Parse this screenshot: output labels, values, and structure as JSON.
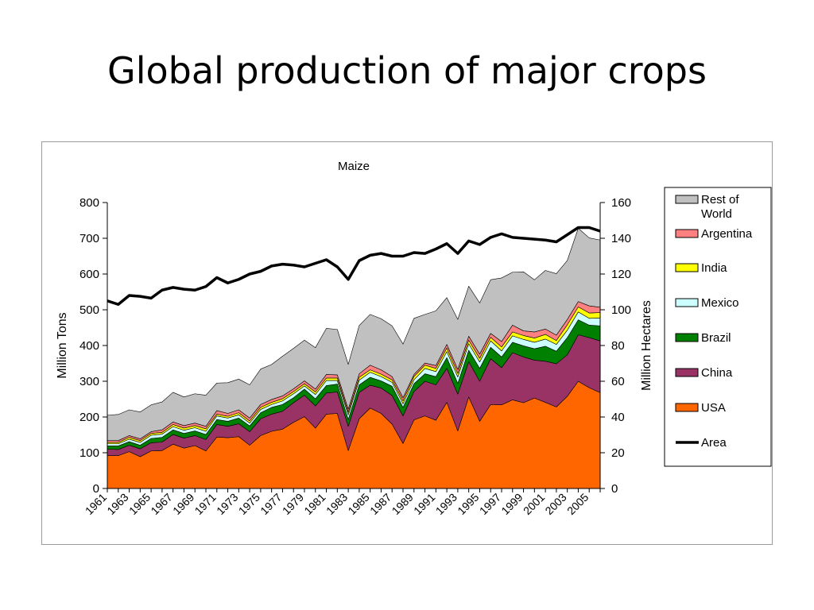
{
  "slide": {
    "title": "Global production of major crops"
  },
  "colors": {
    "USA": "#ff6600",
    "China": "#993366",
    "Brazil": "#008000",
    "Mexico": "#ccffff",
    "India": "#ffff00",
    "Argentina": "#ff8080",
    "Rest of World": "#c0c0c0",
    "Area": "#000000"
  },
  "chart_data": {
    "type": "area",
    "title": "Maize",
    "xlabel": "",
    "ylabel": "Million Tons",
    "y2label": "Million Hectares",
    "ylim": [
      0,
      800
    ],
    "y2lim": [
      0,
      160
    ],
    "yticks": [
      0,
      100,
      200,
      300,
      400,
      500,
      600,
      700,
      800
    ],
    "y2ticks": [
      0,
      20,
      40,
      60,
      80,
      100,
      120,
      140,
      160
    ],
    "grid": false,
    "legend_position": "right",
    "x": [
      1961,
      1962,
      1963,
      1964,
      1965,
      1966,
      1967,
      1968,
      1969,
      1970,
      1971,
      1972,
      1973,
      1974,
      1975,
      1976,
      1977,
      1978,
      1979,
      1980,
      1981,
      1982,
      1983,
      1984,
      1985,
      1986,
      1987,
      1988,
      1989,
      1990,
      1991,
      1992,
      1993,
      1994,
      1995,
      1996,
      1997,
      1998,
      1999,
      2000,
      2001,
      2002,
      2003,
      2004,
      2005,
      2006
    ],
    "xtick_labels": [
      "1961",
      "1963",
      "1965",
      "1967",
      "1969",
      "1971",
      "1973",
      "1975",
      "1977",
      "1979",
      "1981",
      "1983",
      "1985",
      "1987",
      "1989",
      "1991",
      "1993",
      "1995",
      "1997",
      "1999",
      "2001",
      "2003",
      "2005"
    ],
    "legend": [
      "Rest of World",
      "Argentina",
      "India",
      "Mexico",
      "Brazil",
      "China",
      "USA",
      "Area"
    ],
    "series": [
      {
        "name": "USA",
        "type": "stacked-area",
        "values": [
          92,
          92,
          103,
          89,
          105,
          106,
          124,
          113,
          120,
          105,
          144,
          142,
          145,
          121,
          148,
          160,
          166,
          185,
          201,
          169,
          208,
          210,
          106,
          195,
          225,
          210,
          180,
          126,
          192,
          203,
          191,
          241,
          161,
          256,
          188,
          235,
          234,
          248,
          240,
          253,
          241,
          228,
          258,
          300,
          282,
          268
        ]
      },
      {
        "name": "China",
        "type": "stacked-area",
        "values": [
          18,
          17,
          18,
          22,
          23,
          24,
          27,
          28,
          28,
          32,
          35,
          32,
          36,
          38,
          47,
          48,
          50,
          55,
          60,
          62,
          59,
          60,
          68,
          74,
          64,
          71,
          80,
          77,
          79,
          97,
          99,
          95,
          103,
          99,
          112,
          128,
          104,
          132,
          128,
          106,
          115,
          121,
          116,
          130,
          140,
          145
        ]
      },
      {
        "name": "Brazil",
        "type": "stacked-area",
        "values": [
          9,
          10,
          10,
          10,
          12,
          13,
          13,
          13,
          13,
          14,
          14,
          14,
          16,
          16,
          17,
          19,
          19,
          14,
          17,
          20,
          21,
          22,
          19,
          21,
          22,
          20,
          26,
          24,
          22,
          21,
          23,
          30,
          30,
          32,
          36,
          32,
          30,
          29,
          31,
          32,
          42,
          35,
          48,
          42,
          35,
          42
        ]
      },
      {
        "name": "Mexico",
        "type": "stacked-area",
        "values": [
          6,
          6,
          7,
          8,
          9,
          9,
          9,
          9,
          9,
          9,
          10,
          9,
          9,
          8,
          9,
          8,
          10,
          11,
          9,
          12,
          14,
          10,
          13,
          13,
          14,
          12,
          11,
          10,
          11,
          15,
          14,
          17,
          18,
          18,
          18,
          18,
          17,
          18,
          18,
          18,
          20,
          19,
          21,
          22,
          19,
          22
        ]
      },
      {
        "name": "India",
        "type": "stacked-area",
        "values": [
          4,
          4,
          5,
          5,
          5,
          5,
          6,
          6,
          6,
          7,
          5,
          5,
          6,
          6,
          6,
          6,
          6,
          6,
          6,
          7,
          7,
          7,
          7,
          8,
          7,
          7,
          7,
          8,
          9,
          9,
          9,
          10,
          10,
          10,
          10,
          10,
          11,
          11,
          11,
          12,
          13,
          11,
          15,
          14,
          15,
          15
        ]
      },
      {
        "name": "Argentina",
        "type": "stacked-area",
        "values": [
          5,
          5,
          5,
          5,
          5,
          7,
          7,
          7,
          7,
          7,
          10,
          8,
          8,
          8,
          8,
          8,
          8,
          8,
          8,
          8,
          10,
          9,
          9,
          10,
          13,
          12,
          9,
          9,
          6,
          6,
          8,
          10,
          11,
          11,
          12,
          11,
          15,
          19,
          13,
          17,
          15,
          15,
          15,
          15,
          20,
          15
        ]
      },
      {
        "name": "Rest of World",
        "type": "stacked-area",
        "values": [
          71,
          73,
          72,
          75,
          75,
          78,
          83,
          80,
          82,
          87,
          77,
          86,
          86,
          93,
          99,
          98,
          111,
          113,
          114,
          116,
          129,
          127,
          125,
          135,
          142,
          143,
          142,
          150,
          157,
          136,
          153,
          131,
          140,
          140,
          143,
          150,
          178,
          148,
          165,
          146,
          164,
          172,
          165,
          205,
          190,
          188
        ]
      },
      {
        "name": "Area",
        "type": "line",
        "axis": "secondary",
        "values": [
          105,
          103,
          108,
          107.5,
          106.5,
          111,
          112.5,
          111.5,
          111,
          113,
          118,
          115,
          117,
          120,
          121.5,
          124.5,
          125.5,
          125,
          124,
          126,
          128,
          124,
          117,
          127.5,
          130.5,
          131.5,
          130,
          130,
          132,
          131.5,
          134,
          137,
          131.5,
          138.5,
          136.5,
          140.5,
          142.5,
          140.5,
          140,
          139.5,
          139,
          138,
          142,
          146,
          146,
          144
        ]
      }
    ]
  }
}
